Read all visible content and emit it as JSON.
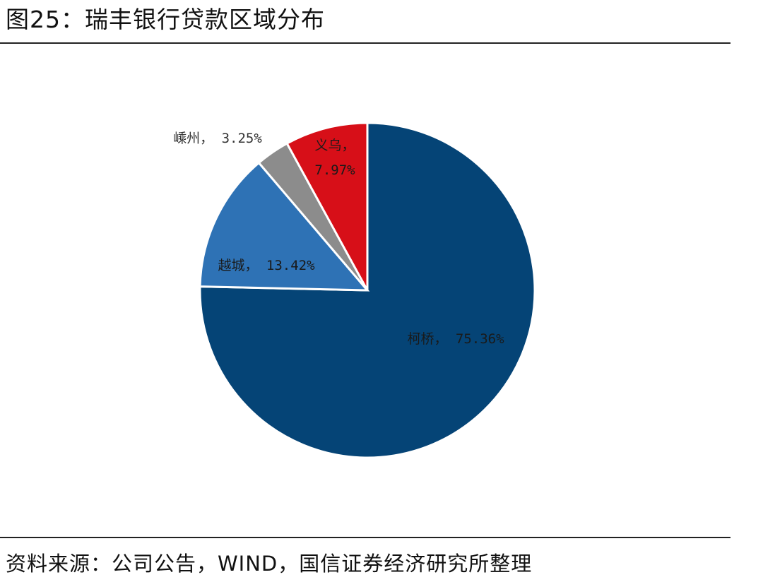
{
  "header": {
    "title": "图25：瑞丰银行贷款区域分布"
  },
  "footer": {
    "source": "资料来源：公司公告，WIND，国信证券经济研究所整理"
  },
  "chart_data": {
    "type": "pie",
    "title": "",
    "start_angle": "12 o'clock",
    "direction": "clockwise",
    "slices": [
      {
        "label": "柯桥",
        "percent": "75.36%",
        "value": 75.36,
        "color": "#054476",
        "label_color": "#1a1a1a"
      },
      {
        "label": "越城",
        "percent": "13.42%",
        "value": 13.42,
        "color": "#2E72B5",
        "label_color": "#1a1a1a"
      },
      {
        "label": "嵊州",
        "percent": "3.25%",
        "value": 3.25,
        "color": "#8C8C8C",
        "label_color": "#333333"
      },
      {
        "label": "义乌",
        "percent": "7.97%",
        "value": 7.97,
        "color": "#D70F18",
        "label_color": "#1a1a1a"
      }
    ]
  }
}
